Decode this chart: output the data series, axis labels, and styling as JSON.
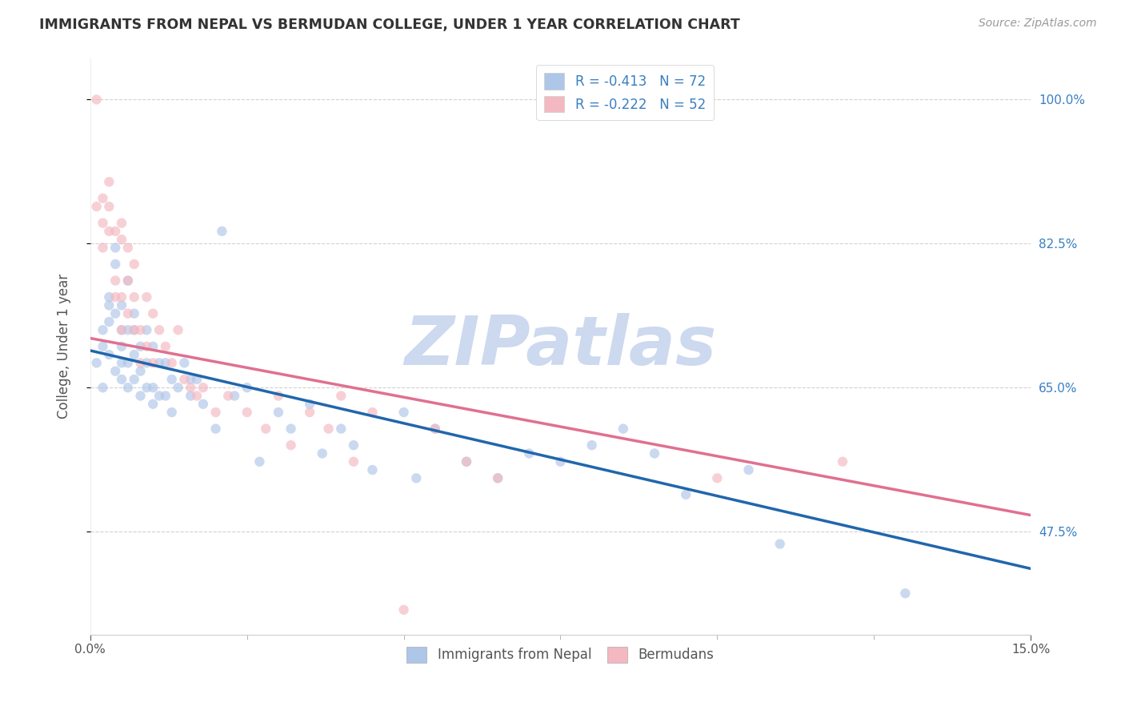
{
  "title": "IMMIGRANTS FROM NEPAL VS BERMUDAN COLLEGE, UNDER 1 YEAR CORRELATION CHART",
  "source": "Source: ZipAtlas.com",
  "ylabel": "College, Under 1 year",
  "ytick_labels": [
    "100.0%",
    "82.5%",
    "65.0%",
    "47.5%"
  ],
  "ytick_values": [
    1.0,
    0.825,
    0.65,
    0.475
  ],
  "xlim": [
    0.0,
    0.15
  ],
  "ylim": [
    0.35,
    1.05
  ],
  "legend_entries": [
    {
      "label": "R = -0.413   N = 72",
      "color": "#aec6e8",
      "line_color": "#3a7fc1"
    },
    {
      "label": "R = -0.222   N = 52",
      "color": "#f4b8c1",
      "line_color": "#e07090"
    }
  ],
  "watermark": "ZIPatlas",
  "nepal_scatter_x": [
    0.001,
    0.002,
    0.002,
    0.002,
    0.003,
    0.003,
    0.003,
    0.003,
    0.004,
    0.004,
    0.004,
    0.004,
    0.005,
    0.005,
    0.005,
    0.005,
    0.005,
    0.006,
    0.006,
    0.006,
    0.006,
    0.007,
    0.007,
    0.007,
    0.007,
    0.008,
    0.008,
    0.008,
    0.009,
    0.009,
    0.009,
    0.01,
    0.01,
    0.01,
    0.011,
    0.011,
    0.012,
    0.012,
    0.013,
    0.013,
    0.014,
    0.015,
    0.016,
    0.016,
    0.017,
    0.018,
    0.02,
    0.021,
    0.023,
    0.025,
    0.027,
    0.03,
    0.032,
    0.035,
    0.037,
    0.04,
    0.042,
    0.045,
    0.05,
    0.052,
    0.055,
    0.06,
    0.065,
    0.07,
    0.075,
    0.08,
    0.085,
    0.09,
    0.095,
    0.105,
    0.11,
    0.13
  ],
  "nepal_scatter_y": [
    0.68,
    0.72,
    0.65,
    0.7,
    0.76,
    0.73,
    0.69,
    0.75,
    0.82,
    0.8,
    0.74,
    0.67,
    0.72,
    0.68,
    0.75,
    0.7,
    0.66,
    0.78,
    0.72,
    0.68,
    0.65,
    0.74,
    0.69,
    0.66,
    0.72,
    0.7,
    0.67,
    0.64,
    0.72,
    0.68,
    0.65,
    0.7,
    0.65,
    0.63,
    0.68,
    0.64,
    0.68,
    0.64,
    0.66,
    0.62,
    0.65,
    0.68,
    0.66,
    0.64,
    0.66,
    0.63,
    0.6,
    0.84,
    0.64,
    0.65,
    0.56,
    0.62,
    0.6,
    0.63,
    0.57,
    0.6,
    0.58,
    0.55,
    0.62,
    0.54,
    0.6,
    0.56,
    0.54,
    0.57,
    0.56,
    0.58,
    0.6,
    0.57,
    0.52,
    0.55,
    0.46,
    0.4
  ],
  "bermuda_scatter_x": [
    0.001,
    0.001,
    0.002,
    0.002,
    0.002,
    0.003,
    0.003,
    0.003,
    0.004,
    0.004,
    0.004,
    0.005,
    0.005,
    0.005,
    0.005,
    0.006,
    0.006,
    0.006,
    0.007,
    0.007,
    0.007,
    0.008,
    0.008,
    0.009,
    0.009,
    0.01,
    0.01,
    0.011,
    0.012,
    0.013,
    0.014,
    0.015,
    0.016,
    0.017,
    0.018,
    0.02,
    0.022,
    0.025,
    0.028,
    0.03,
    0.032,
    0.035,
    0.038,
    0.04,
    0.042,
    0.045,
    0.05,
    0.055,
    0.06,
    0.065,
    0.1,
    0.12
  ],
  "bermuda_scatter_y": [
    1.0,
    0.87,
    0.88,
    0.85,
    0.82,
    0.9,
    0.87,
    0.84,
    0.84,
    0.78,
    0.76,
    0.85,
    0.83,
    0.76,
    0.72,
    0.82,
    0.78,
    0.74,
    0.8,
    0.76,
    0.72,
    0.72,
    0.68,
    0.76,
    0.7,
    0.74,
    0.68,
    0.72,
    0.7,
    0.68,
    0.72,
    0.66,
    0.65,
    0.64,
    0.65,
    0.62,
    0.64,
    0.62,
    0.6,
    0.64,
    0.58,
    0.62,
    0.6,
    0.64,
    0.56,
    0.62,
    0.38,
    0.6,
    0.56,
    0.54,
    0.54,
    0.56
  ],
  "nepal_line_x": [
    0.0,
    0.15
  ],
  "nepal_line_y": [
    0.695,
    0.43
  ],
  "bermuda_line_x": [
    0.0,
    0.15
  ],
  "bermuda_line_y": [
    0.71,
    0.495
  ],
  "nepal_dot_color": "#aec6e8",
  "nepal_line_color": "#2166ac",
  "bermuda_dot_color": "#f4b8c1",
  "bermuda_line_color": "#e07090",
  "background_color": "#ffffff",
  "grid_color": "#cccccc",
  "title_color": "#333333",
  "axis_label_color": "#555555",
  "right_axis_color": "#3a7fc1",
  "watermark_color": "#ccd9ef",
  "dot_size": 80,
  "dot_alpha": 0.65,
  "dot_linewidth": 0.0
}
